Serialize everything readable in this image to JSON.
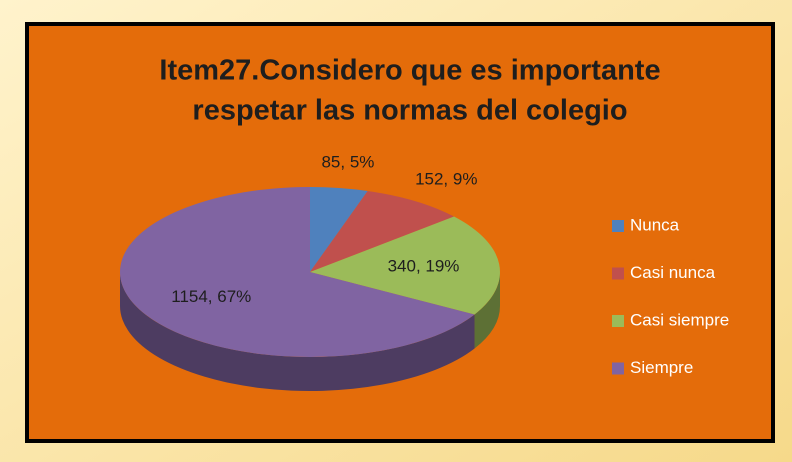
{
  "chart_data": {
    "type": "pie",
    "title": [
      "Item27.Considero que es importante",
      "respetar las normas del colegio"
    ],
    "categories": [
      "Nunca",
      "Casi nunca",
      "Casi siempre",
      "Siempre"
    ],
    "values": [
      85,
      152,
      340,
      1154
    ],
    "value_labels": [
      "85, 5%",
      "152, 9%",
      "340, 19%",
      "1154, 67%"
    ],
    "colors": [
      "#4F81BD",
      "#C0504D",
      "#9BBB59",
      "#8064A2"
    ],
    "legend": "right"
  }
}
